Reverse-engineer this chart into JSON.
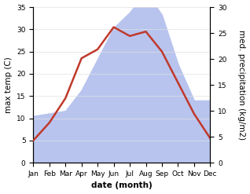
{
  "months": [
    "Jan",
    "Feb",
    "Mar",
    "Apr",
    "May",
    "Jun",
    "Jul",
    "Aug",
    "Sep",
    "Oct",
    "Nov",
    "Dec"
  ],
  "temperature": [
    5.0,
    9.0,
    14.5,
    23.5,
    25.5,
    30.5,
    28.5,
    29.5,
    25.0,
    18.0,
    11.0,
    5.5
  ],
  "precipitation": [
    9.0,
    9.5,
    10.0,
    14.0,
    20.0,
    26.0,
    29.0,
    33.0,
    28.5,
    19.0,
    12.0,
    12.0
  ],
  "temp_color": "#c0392b",
  "precip_color": "#b8c4ee",
  "background_color": "#ffffff",
  "temp_ylim": [
    0,
    35
  ],
  "precip_ylim": [
    0,
    30
  ],
  "temp_yticks": [
    0,
    5,
    10,
    15,
    20,
    25,
    30,
    35
  ],
  "precip_yticks": [
    0,
    5,
    10,
    15,
    20,
    25,
    30
  ],
  "ylabel_left": "max temp (C)",
  "ylabel_right": "med. precipitation (kg/m2)",
  "xlabel": "date (month)",
  "label_fontsize": 7.5,
  "tick_fontsize": 6.5
}
